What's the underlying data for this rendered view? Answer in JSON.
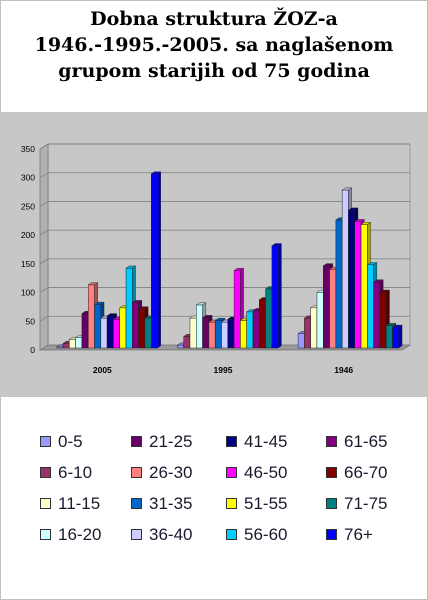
{
  "title_lines": [
    "Dobna struktura ŽOZ-a",
    "1946.-1995.-2005. sa naglašenom",
    "grupom starijih od 75 godina"
  ],
  "chart_data": {
    "type": "bar",
    "title": "Dobna struktura ŽOZ-a 1946.-1995.-2005. sa naglašenom grupom starijih od 75 godina",
    "categories": [
      "2005",
      "1995",
      "1946"
    ],
    "yticks": [
      "0",
      "50",
      "100",
      "150",
      "200",
      "250",
      "300",
      "350"
    ],
    "ylim": [
      0,
      350
    ],
    "grid": true,
    "legend_position": "bottom",
    "series": [
      {
        "name": "0-5",
        "color": "#9999ff",
        "values": [
          2,
          5,
          25
        ]
      },
      {
        "name": "6-10",
        "color": "#993366",
        "values": [
          8,
          20,
          52
        ]
      },
      {
        "name": "11-15",
        "color": "#ffffcc",
        "values": [
          15,
          52,
          70
        ]
      },
      {
        "name": "16-20",
        "color": "#ccffff",
        "values": [
          18,
          75,
          97
        ]
      },
      {
        "name": "21-25",
        "color": "#660066",
        "values": [
          60,
          53,
          143
        ]
      },
      {
        "name": "26-30",
        "color": "#ff8080",
        "values": [
          110,
          45,
          137
        ]
      },
      {
        "name": "31-35",
        "color": "#0066cc",
        "values": [
          76,
          48,
          223
        ]
      },
      {
        "name": "36-40",
        "color": "#ccccff",
        "values": [
          52,
          45,
          275
        ]
      },
      {
        "name": "41-45",
        "color": "#000080",
        "values": [
          56,
          50,
          240
        ]
      },
      {
        "name": "46-50",
        "color": "#ff00ff",
        "values": [
          50,
          135,
          220
        ]
      },
      {
        "name": "51-55",
        "color": "#ffff00",
        "values": [
          70,
          48,
          215
        ]
      },
      {
        "name": "56-60",
        "color": "#00ccff",
        "values": [
          139,
          63,
          145
        ]
      },
      {
        "name": "61-65",
        "color": "#800080",
        "values": [
          79,
          65,
          115
        ]
      },
      {
        "name": "66-70",
        "color": "#800000",
        "values": [
          68,
          84,
          97
        ]
      },
      {
        "name": "71-75",
        "color": "#008080",
        "values": [
          52,
          103,
          39
        ]
      },
      {
        "name": "76+",
        "color": "#0000ff",
        "values": [
          303,
          178,
          36
        ]
      }
    ]
  },
  "legend_order": [
    "0-5",
    "21-25",
    "41-45",
    "61-65",
    "6-10",
    "26-30",
    "46-50",
    "66-70",
    "11-15",
    "31-35",
    "51-55",
    "71-75",
    "16-20",
    "36-40",
    "56-60",
    "76+"
  ]
}
